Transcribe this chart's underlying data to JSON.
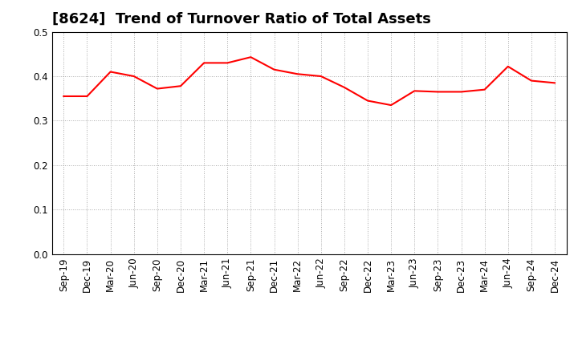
{
  "title": "[8624]  Trend of Turnover Ratio of Total Assets",
  "x_labels": [
    "Sep-19",
    "Dec-19",
    "Mar-20",
    "Jun-20",
    "Sep-20",
    "Dec-20",
    "Mar-21",
    "Jun-21",
    "Sep-21",
    "Dec-21",
    "Mar-22",
    "Jun-22",
    "Sep-22",
    "Dec-22",
    "Mar-23",
    "Jun-23",
    "Sep-23",
    "Dec-23",
    "Mar-24",
    "Jun-24",
    "Sep-24",
    "Dec-24"
  ],
  "y_values": [
    0.355,
    0.355,
    0.41,
    0.4,
    0.372,
    0.378,
    0.43,
    0.43,
    0.443,
    0.415,
    0.405,
    0.4,
    0.375,
    0.345,
    0.335,
    0.367,
    0.365,
    0.365,
    0.37,
    0.422,
    0.39,
    0.385
  ],
  "line_color": "#FF0000",
  "line_width": 1.5,
  "ylim": [
    0.0,
    0.5
  ],
  "yticks": [
    0.0,
    0.1,
    0.2,
    0.3,
    0.4,
    0.5
  ],
  "background_color": "#FFFFFF",
  "plot_bg_color": "#FFFFFF",
  "grid_color": "#AAAAAA",
  "title_fontsize": 13,
  "tick_fontsize": 8.5
}
